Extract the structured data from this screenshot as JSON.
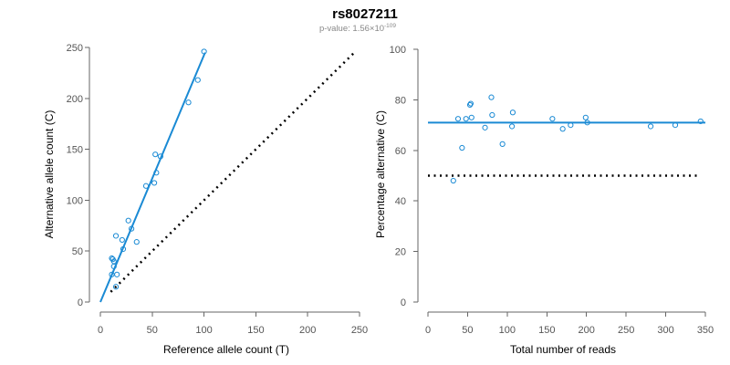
{
  "title": "rs8027211",
  "subtitle": {
    "prefix": "p-value: 1.56×10",
    "exponent": "-109"
  },
  "colors": {
    "data": "#1a8ad4",
    "reference": "#000000",
    "axis": "#666666",
    "tick_text": "#555555"
  },
  "chart_data": [
    {
      "type": "scatter",
      "xlabel": "Reference allele count (T)",
      "ylabel": "Alternative allele count (C)",
      "xlim": [
        0,
        250
      ],
      "ylim": [
        0,
        250
      ],
      "xticks": [
        0,
        50,
        100,
        150,
        200,
        250
      ],
      "yticks": [
        0,
        50,
        100,
        150,
        200,
        250
      ],
      "grid": false,
      "points": [
        [
          11,
          27
        ],
        [
          11,
          43
        ],
        [
          12,
          42
        ],
        [
          13,
          35
        ],
        [
          13,
          40
        ],
        [
          15,
          15
        ],
        [
          15,
          65
        ],
        [
          16,
          27
        ],
        [
          21,
          61
        ],
        [
          22,
          52
        ],
        [
          27,
          80
        ],
        [
          30,
          72
        ],
        [
          35,
          59
        ],
        [
          44,
          114
        ],
        [
          52,
          117
        ],
        [
          53,
          145
        ],
        [
          54,
          127
        ],
        [
          58,
          143
        ],
        [
          85,
          196
        ],
        [
          94,
          218
        ],
        [
          100,
          246
        ]
      ],
      "fit_line": {
        "from": [
          0,
          0
        ],
        "to": [
          101,
          245
        ]
      },
      "reference_line": {
        "from": [
          10,
          10
        ],
        "to": [
          245,
          245
        ],
        "style": "dotted"
      }
    },
    {
      "type": "scatter",
      "xlabel": "Total number of reads",
      "ylabel": "Percentage alternative (C)",
      "xlim": [
        0,
        350
      ],
      "ylim": [
        0,
        100
      ],
      "xticks": [
        0,
        50,
        100,
        150,
        200,
        250,
        300,
        350
      ],
      "yticks": [
        0,
        20,
        40,
        60,
        80,
        100
      ],
      "grid": false,
      "points": [
        [
          32,
          48
        ],
        [
          38,
          72.5
        ],
        [
          43,
          61
        ],
        [
          48,
          72.5
        ],
        [
          53,
          78
        ],
        [
          54,
          78.5
        ],
        [
          55,
          73
        ],
        [
          72,
          69
        ],
        [
          80,
          81
        ],
        [
          81,
          74
        ],
        [
          94,
          62.5
        ],
        [
          106,
          69.5
        ],
        [
          107,
          75
        ],
        [
          157,
          72.5
        ],
        [
          170,
          68.5
        ],
        [
          180,
          70
        ],
        [
          199,
          73
        ],
        [
          201,
          71
        ],
        [
          281,
          69.5
        ],
        [
          312,
          70
        ],
        [
          344,
          71.5
        ]
      ],
      "fit_line": {
        "from": [
          0,
          71
        ],
        "to": [
          350,
          71
        ]
      },
      "reference_line": {
        "from": [
          0,
          50
        ],
        "to": [
          340,
          50
        ],
        "style": "dotted"
      }
    }
  ]
}
